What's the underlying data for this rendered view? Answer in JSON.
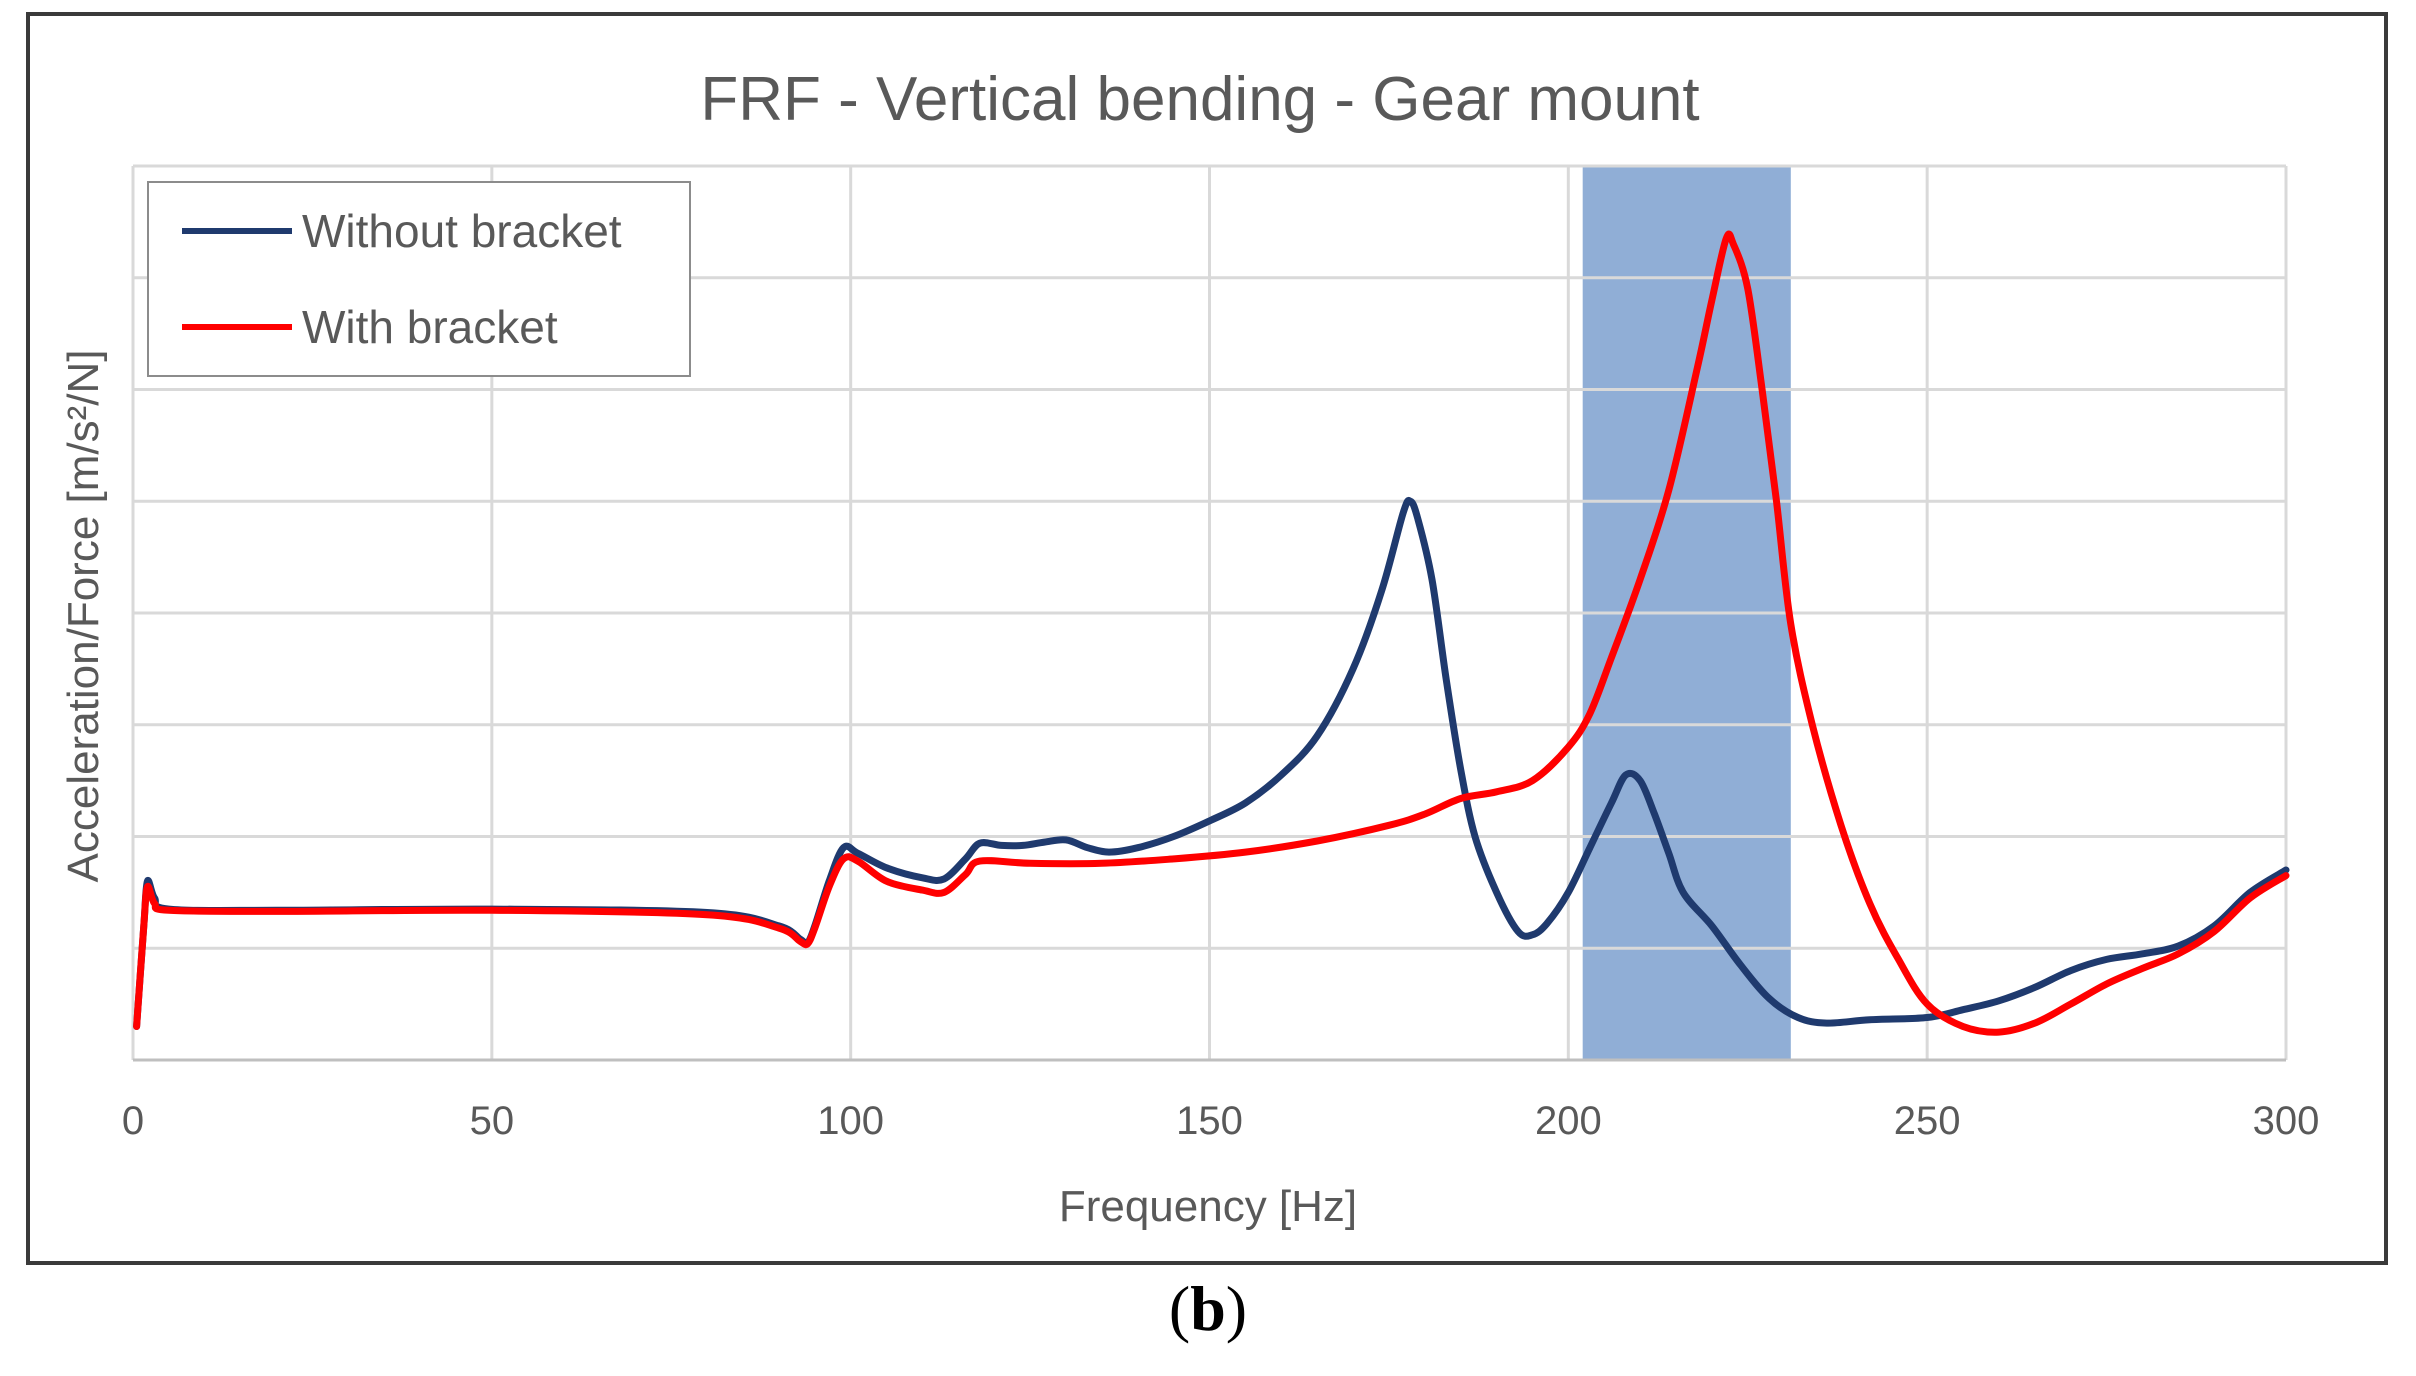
{
  "figure": {
    "panel_label_open": "(",
    "panel_label_letter": "b",
    "panel_label_close": ")"
  },
  "chart_data": {
    "type": "line",
    "title": "FRF - Vertical bending - Gear mount",
    "xlabel": "Frequency [Hz]",
    "ylabel": "Acceleration/Force [m/s²/N]",
    "xlim": [
      0,
      300
    ],
    "ylim": [
      0,
      8
    ],
    "x_ticks": [
      0,
      50,
      100,
      150,
      200,
      250,
      300
    ],
    "x_tick_labels": [
      "0",
      "50",
      "100",
      "150",
      "200",
      "250",
      "300"
    ],
    "y_ticks_shown": false,
    "grid": true,
    "legend_position": "top-left",
    "highlight_band": {
      "x_from": 202,
      "x_to": 231,
      "color": "#7da0cf"
    },
    "series": [
      {
        "name": "Without bracket",
        "color": "#1f3a6e",
        "points": [
          [
            0.5,
            0.3
          ],
          [
            1.5,
            1.2
          ],
          [
            2,
            1.6
          ],
          [
            3,
            1.45
          ],
          [
            5,
            1.35
          ],
          [
            20,
            1.34
          ],
          [
            50,
            1.35
          ],
          [
            80,
            1.32
          ],
          [
            90,
            1.2
          ],
          [
            93,
            1.08
          ],
          [
            94,
            1.05
          ],
          [
            95,
            1.2
          ],
          [
            97,
            1.6
          ],
          [
            99,
            1.9
          ],
          [
            101,
            1.85
          ],
          [
            105,
            1.72
          ],
          [
            110,
            1.63
          ],
          [
            113,
            1.62
          ],
          [
            116,
            1.8
          ],
          [
            118,
            1.94
          ],
          [
            121,
            1.92
          ],
          [
            124,
            1.92
          ],
          [
            127,
            1.95
          ],
          [
            130,
            1.97
          ],
          [
            133,
            1.9
          ],
          [
            136,
            1.86
          ],
          [
            140,
            1.9
          ],
          [
            145,
            2.0
          ],
          [
            150,
            2.14
          ],
          [
            155,
            2.3
          ],
          [
            160,
            2.55
          ],
          [
            165,
            2.9
          ],
          [
            170,
            3.5
          ],
          [
            174,
            4.2
          ],
          [
            177,
            4.9
          ],
          [
            178,
            5.0
          ],
          [
            179,
            4.85
          ],
          [
            181,
            4.3
          ],
          [
            183,
            3.4
          ],
          [
            185,
            2.6
          ],
          [
            187,
            2.0
          ],
          [
            190,
            1.5
          ],
          [
            193,
            1.15
          ],
          [
            195,
            1.12
          ],
          [
            197,
            1.22
          ],
          [
            200,
            1.5
          ],
          [
            203,
            1.9
          ],
          [
            206,
            2.3
          ],
          [
            208,
            2.55
          ],
          [
            210,
            2.5
          ],
          [
            212,
            2.2
          ],
          [
            214,
            1.85
          ],
          [
            216,
            1.5
          ],
          [
            220,
            1.2
          ],
          [
            224,
            0.85
          ],
          [
            228,
            0.55
          ],
          [
            232,
            0.38
          ],
          [
            236,
            0.33
          ],
          [
            242,
            0.36
          ],
          [
            250,
            0.38
          ],
          [
            255,
            0.45
          ],
          [
            260,
            0.53
          ],
          [
            265,
            0.65
          ],
          [
            270,
            0.8
          ],
          [
            275,
            0.9
          ],
          [
            280,
            0.95
          ],
          [
            285,
            1.02
          ],
          [
            290,
            1.2
          ],
          [
            295,
            1.5
          ],
          [
            300,
            1.7
          ]
        ]
      },
      {
        "name": "With bracket",
        "color": "#ff0000",
        "points": [
          [
            0.5,
            0.3
          ],
          [
            1.5,
            1.2
          ],
          [
            2,
            1.55
          ],
          [
            3,
            1.4
          ],
          [
            5,
            1.34
          ],
          [
            20,
            1.33
          ],
          [
            50,
            1.34
          ],
          [
            80,
            1.3
          ],
          [
            90,
            1.18
          ],
          [
            93,
            1.06
          ],
          [
            94,
            1.04
          ],
          [
            95,
            1.18
          ],
          [
            97,
            1.55
          ],
          [
            99,
            1.8
          ],
          [
            101,
            1.78
          ],
          [
            105,
            1.6
          ],
          [
            110,
            1.52
          ],
          [
            113,
            1.5
          ],
          [
            116,
            1.66
          ],
          [
            118,
            1.78
          ],
          [
            125,
            1.76
          ],
          [
            135,
            1.76
          ],
          [
            145,
            1.8
          ],
          [
            155,
            1.86
          ],
          [
            165,
            1.96
          ],
          [
            175,
            2.1
          ],
          [
            180,
            2.2
          ],
          [
            185,
            2.34
          ],
          [
            190,
            2.4
          ],
          [
            195,
            2.5
          ],
          [
            200,
            2.8
          ],
          [
            203,
            3.1
          ],
          [
            206,
            3.6
          ],
          [
            210,
            4.3
          ],
          [
            214,
            5.1
          ],
          [
            218,
            6.2
          ],
          [
            220,
            6.8
          ],
          [
            222,
            7.35
          ],
          [
            223,
            7.3
          ],
          [
            225,
            6.9
          ],
          [
            227,
            6.0
          ],
          [
            229,
            5.0
          ],
          [
            231,
            3.9
          ],
          [
            234,
            3.0
          ],
          [
            238,
            2.1
          ],
          [
            242,
            1.4
          ],
          [
            246,
            0.9
          ],
          [
            250,
            0.5
          ],
          [
            255,
            0.3
          ],
          [
            260,
            0.25
          ],
          [
            265,
            0.33
          ],
          [
            270,
            0.5
          ],
          [
            275,
            0.68
          ],
          [
            280,
            0.82
          ],
          [
            285,
            0.95
          ],
          [
            290,
            1.15
          ],
          [
            295,
            1.45
          ],
          [
            300,
            1.65
          ]
        ]
      }
    ]
  }
}
